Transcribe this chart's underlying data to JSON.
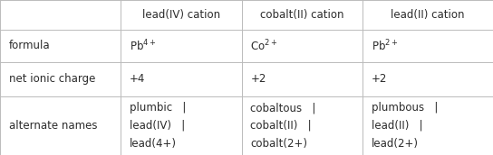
{
  "col_headers": [
    "",
    "lead(IV) cation",
    "cobalt(II) cation",
    "lead(II) cation"
  ],
  "row_labels": [
    "formula",
    "net ionic charge",
    "alternate names"
  ],
  "formulas": [
    "Pb$^{4+}$",
    "Co$^{2+}$",
    "Pb$^{2+}$"
  ],
  "charges": [
    "+4",
    "+2",
    "+2"
  ],
  "alt_names_lines": [
    [
      "plumbic   |",
      "lead(IV)   |",
      "lead(4+)"
    ],
    [
      "cobaltous   |",
      "cobalt(II)   |",
      "cobalt(2+)"
    ],
    [
      "plumbous   |",
      "lead(II)   |",
      "lead(2+)"
    ]
  ],
  "bg_color": "#ffffff",
  "text_color": "#2b2b2b",
  "line_color": "#bbbbbb",
  "font_size": 8.5,
  "figw": 5.44,
  "figh": 1.72
}
